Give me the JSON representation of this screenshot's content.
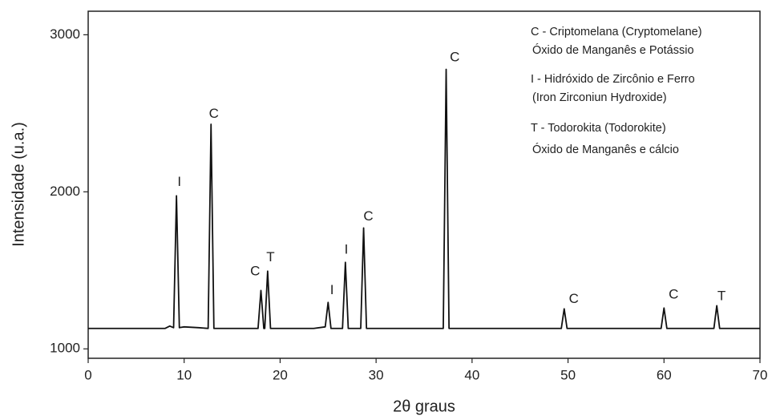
{
  "chart_data": {
    "type": "line",
    "xlabel": "2θ graus",
    "ylabel": "Intensidade (u.a.)",
    "xlim": [
      0,
      70
    ],
    "ylim": [
      940,
      3150
    ],
    "xticks": [
      0,
      10,
      20,
      30,
      40,
      50,
      60,
      70
    ],
    "yticks": [
      1000,
      2000,
      3000
    ],
    "series": [
      {
        "color": "#111111",
        "x": [
          0,
          8.0,
          8.5,
          8.9,
          9.2,
          9.5,
          10.0,
          11.5,
          12.5,
          12.8,
          13.1,
          17.7,
          18.0,
          18.3,
          18.4,
          18.7,
          19.0,
          23.5,
          24.7,
          25.0,
          25.3,
          26.5,
          26.8,
          27.1,
          28.4,
          28.7,
          29.0,
          37.0,
          37.3,
          37.6,
          49.3,
          49.6,
          49.9,
          59.7,
          60.0,
          60.3,
          65.2,
          65.5,
          65.8,
          70
        ],
        "y": [
          1130,
          1130,
          1145,
          1135,
          1975,
          1135,
          1140,
          1135,
          1130,
          2430,
          1130,
          1130,
          1372,
          1130,
          1130,
          1495,
          1130,
          1130,
          1140,
          1296,
          1130,
          1130,
          1551,
          1130,
          1130,
          1770,
          1130,
          1130,
          2780,
          1130,
          1130,
          1255,
          1130,
          1130,
          1260,
          1130,
          1130,
          1275,
          1130,
          1130
        ]
      }
    ],
    "annotations": [
      {
        "text": "I",
        "x": 9.5,
        "y": 2060
      },
      {
        "text": "C",
        "x": 13.1,
        "y": 2495
      },
      {
        "text": "C",
        "x": 17.4,
        "y": 1490
      },
      {
        "text": "T",
        "x": 19.0,
        "y": 1580
      },
      {
        "text": "I",
        "x": 25.4,
        "y": 1372
      },
      {
        "text": "I",
        "x": 26.9,
        "y": 1630
      },
      {
        "text": "C",
        "x": 29.2,
        "y": 1840
      },
      {
        "text": "C",
        "x": 38.2,
        "y": 2855
      },
      {
        "text": "C",
        "x": 50.6,
        "y": 1316
      },
      {
        "text": "C",
        "x": 61.0,
        "y": 1342
      },
      {
        "text": "T",
        "x": 66.0,
        "y": 1332
      }
    ],
    "notes": [
      "C - Criptomelana (Cryptomelane)",
      "Óxido de Manganês e Potássio",
      "I - Hidróxido de Zircônio e Ferro",
      "(Iron Zirconiun Hydroxide)",
      "T - Todorokita (Todorokite)",
      "Óxido de Manganês e cálcio"
    ]
  }
}
